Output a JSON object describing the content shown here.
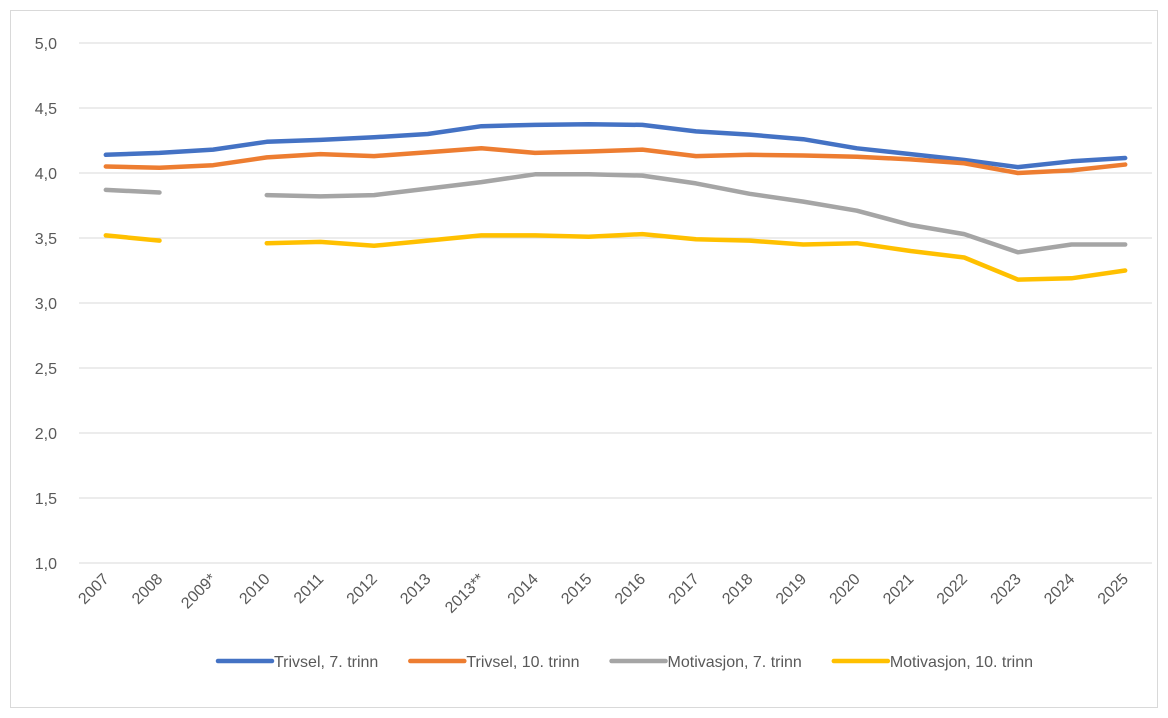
{
  "chart_data": {
    "type": "line",
    "categories": [
      "2007",
      "2008",
      "2009*",
      "2010",
      "2011",
      "2012",
      "2013",
      "2013**",
      "2014",
      "2015",
      "2016",
      "2017",
      "2018",
      "2019",
      "2020",
      "2021",
      "2022",
      "2023",
      "2024",
      "2025"
    ],
    "series": [
      {
        "name": "Trivsel, 7. trinn",
        "color": "#4472c4",
        "values": [
          4.14,
          4.155,
          4.18,
          4.24,
          4.255,
          4.275,
          4.3,
          4.36,
          4.37,
          4.375,
          4.37,
          4.32,
          4.295,
          4.26,
          4.19,
          4.145,
          4.1,
          4.045,
          4.09,
          4.115
        ]
      },
      {
        "name": "Trivsel, 10. trinn",
        "color": "#ed7d31",
        "values": [
          4.05,
          4.04,
          4.06,
          4.12,
          4.145,
          4.13,
          4.16,
          4.19,
          4.155,
          4.165,
          4.18,
          4.13,
          4.14,
          4.135,
          4.125,
          4.105,
          4.075,
          4.0,
          4.02,
          4.065
        ]
      },
      {
        "name": "Motivasjon, 7. trinn",
        "color": "#a5a5a5",
        "values": [
          3.87,
          3.85,
          null,
          3.83,
          3.82,
          3.83,
          3.88,
          3.93,
          3.99,
          3.99,
          3.98,
          3.92,
          3.84,
          3.78,
          3.71,
          3.6,
          3.53,
          3.39,
          3.45,
          3.45
        ]
      },
      {
        "name": "Motivasjon, 10. trinn",
        "color": "#ffc000",
        "values": [
          3.52,
          3.48,
          null,
          3.46,
          3.47,
          3.44,
          3.48,
          3.52,
          3.52,
          3.51,
          3.53,
          3.49,
          3.48,
          3.45,
          3.46,
          3.4,
          3.35,
          3.18,
          3.19,
          3.25
        ]
      }
    ],
    "ylim": [
      1,
      5
    ],
    "yticks": [
      {
        "value": 1,
        "label": "1,0"
      },
      {
        "value": 1.5,
        "label": "1,5"
      },
      {
        "value": 2,
        "label": "2,0"
      },
      {
        "value": 2.5,
        "label": "2,5"
      },
      {
        "value": 3,
        "label": "3,0"
      },
      {
        "value": 3.5,
        "label": "3,5"
      },
      {
        "value": 4,
        "label": "4,0"
      },
      {
        "value": 4.5,
        "label": "4,5"
      },
      {
        "value": 5,
        "label": "5,0"
      }
    ],
    "grid": true,
    "legend": "bottom"
  }
}
